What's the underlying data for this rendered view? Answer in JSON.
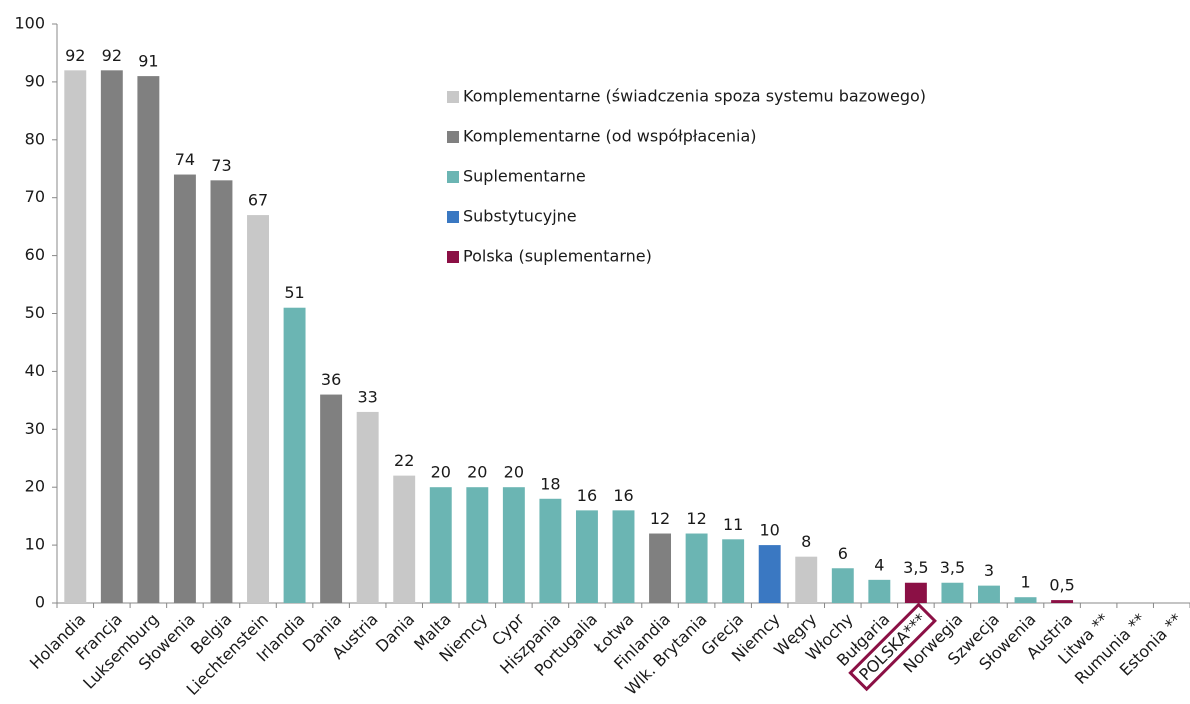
{
  "chart_data": {
    "type": "bar",
    "categories": [
      "Holandia",
      "Francja",
      "Luksemburg",
      "Słowenia",
      "Belgia",
      "Liechtenstein",
      "Irlandia",
      "Dania",
      "Austria",
      "Dania",
      "Malta",
      "Niemcy",
      "Cypr",
      "Hiszpania",
      "Portugalia",
      "Łotwa",
      "Finlandia",
      "Wlk. Brytania",
      "Grecja",
      "Niemcy",
      "Węgry",
      "Włochy",
      "Bułgaria",
      "POLSKA***",
      "Norwegia",
      "Szwecja",
      "Słowenia",
      "Austria",
      "Litwa **",
      "Rumunia **",
      "Estonia **"
    ],
    "values": [
      92,
      92,
      91,
      74,
      73,
      67,
      51,
      36,
      33,
      22,
      20,
      20,
      20,
      18,
      16,
      16,
      12,
      12,
      11,
      10,
      8,
      6,
      4,
      3.5,
      3.5,
      3,
      1,
      0.5,
      null,
      null,
      null
    ],
    "value_labels": [
      "92",
      "92",
      "91",
      "74",
      "73",
      "67",
      "51",
      "36",
      "33",
      "22",
      "20",
      "20",
      "20",
      "18",
      "16",
      "16",
      "12",
      "12",
      "11",
      "10",
      "8",
      "6",
      "4",
      "3,5",
      "3,5",
      "3",
      "1",
      "0,5",
      null,
      null,
      null
    ],
    "colors": [
      "#c8c8c8",
      "#808080",
      "#808080",
      "#808080",
      "#808080",
      "#c8c8c8",
      "#6bb5b3",
      "#808080",
      "#c8c8c8",
      "#c8c8c8",
      "#6bb5b3",
      "#6bb5b3",
      "#6bb5b3",
      "#6bb5b3",
      "#6bb5b3",
      "#6bb5b3",
      "#808080",
      "#6bb5b3",
      "#6bb5b3",
      "#3a78c2",
      "#c8c8c8",
      "#6bb5b3",
      "#6bb5b3",
      "#8b1045",
      "#6bb5b3",
      "#6bb5b3",
      "#6bb5b3",
      "#8b1045",
      null,
      null,
      null
    ],
    "legend": [
      {
        "name": "Komplementarne (świadczenia spoza systemu bazowego)",
        "color": "#c8c8c8"
      },
      {
        "name": "Komplementarne (od współpłacenia)",
        "color": "#808080"
      },
      {
        "name": "Suplementarne",
        "color": "#6bb5b3"
      },
      {
        "name": "Substytucyjne",
        "color": "#3a78c2"
      },
      {
        "name": "Polska (suplementarne)",
        "color": "#8b1045"
      }
    ],
    "highlight_index": 23,
    "ylim": [
      0,
      100
    ],
    "yticks": [
      0,
      10,
      20,
      30,
      40,
      50,
      60,
      70,
      80,
      90,
      100
    ],
    "grid": false
  }
}
